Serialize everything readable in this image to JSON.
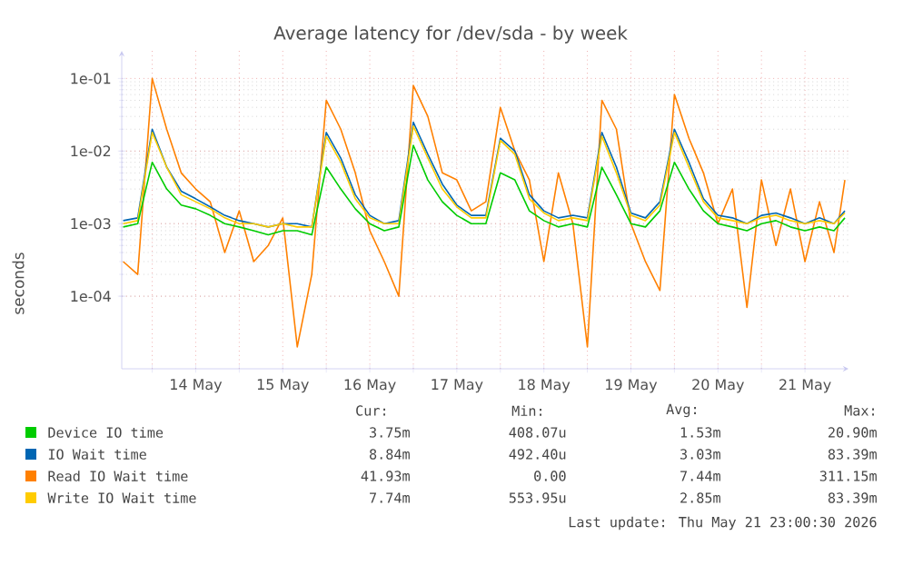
{
  "chart_data": {
    "type": "line",
    "title": "Average latency for /dev/sda - by week",
    "ylabel": "seconds",
    "log": "y",
    "grid": true,
    "legend": "bottom",
    "xlim": [
      "2026-05-13T15:36",
      "2026-05-22T00:00"
    ],
    "ylim": [
      1e-05,
      0.24
    ],
    "xticks": [
      {
        "value": "2026-05-14T00:00",
        "label": null
      },
      {
        "value": "2026-05-14T12:00",
        "label": "14 May"
      },
      {
        "value": "2026-05-15T00:00",
        "label": null
      },
      {
        "value": "2026-05-15T12:00",
        "label": "15 May"
      },
      {
        "value": "2026-05-16T00:00",
        "label": null
      },
      {
        "value": "2026-05-16T12:00",
        "label": "16 May"
      },
      {
        "value": "2026-05-17T00:00",
        "label": null
      },
      {
        "value": "2026-05-17T12:00",
        "label": "17 May"
      },
      {
        "value": "2026-05-18T00:00",
        "label": null
      },
      {
        "value": "2026-05-18T12:00",
        "label": "18 May"
      },
      {
        "value": "2026-05-19T00:00",
        "label": null
      },
      {
        "value": "2026-05-19T12:00",
        "label": "19 May"
      },
      {
        "value": "2026-05-20T00:00",
        "label": null
      },
      {
        "value": "2026-05-20T12:00",
        "label": "20 May"
      },
      {
        "value": "2026-05-21T00:00",
        "label": null
      },
      {
        "value": "2026-05-21T12:00",
        "label": "21 May"
      }
    ],
    "yticks": [
      {
        "value": 0.0001,
        "label": "1e-04"
      },
      {
        "value": 0.001,
        "label": "1e-03"
      },
      {
        "value": 0.01,
        "label": "1e-02"
      },
      {
        "value": 0.1,
        "label": "1e-01"
      }
    ],
    "x": [
      "2026-05-13T16:00",
      "2026-05-13T20:00",
      "2026-05-14T00:00",
      "2026-05-14T04:00",
      "2026-05-14T08:00",
      "2026-05-14T12:00",
      "2026-05-14T16:00",
      "2026-05-14T20:00",
      "2026-05-15T00:00",
      "2026-05-15T04:00",
      "2026-05-15T08:00",
      "2026-05-15T12:00",
      "2026-05-15T16:00",
      "2026-05-15T20:00",
      "2026-05-16T00:00",
      "2026-05-16T04:00",
      "2026-05-16T08:00",
      "2026-05-16T12:00",
      "2026-05-16T16:00",
      "2026-05-16T20:00",
      "2026-05-17T00:00",
      "2026-05-17T04:00",
      "2026-05-17T08:00",
      "2026-05-17T12:00",
      "2026-05-17T16:00",
      "2026-05-17T20:00",
      "2026-05-18T00:00",
      "2026-05-18T04:00",
      "2026-05-18T08:00",
      "2026-05-18T12:00",
      "2026-05-18T16:00",
      "2026-05-18T20:00",
      "2026-05-19T00:00",
      "2026-05-19T04:00",
      "2026-05-19T08:00",
      "2026-05-19T12:00",
      "2026-05-19T16:00",
      "2026-05-19T20:00",
      "2026-05-20T00:00",
      "2026-05-20T04:00",
      "2026-05-20T08:00",
      "2026-05-20T12:00",
      "2026-05-20T16:00",
      "2026-05-20T20:00",
      "2026-05-21T00:00",
      "2026-05-21T04:00",
      "2026-05-21T08:00",
      "2026-05-21T12:00",
      "2026-05-21T16:00",
      "2026-05-21T20:00",
      "2026-05-21T23:00"
    ],
    "series": [
      {
        "name": "Read IO Wait time",
        "color": "#ff8000",
        "values": [
          0.0003,
          0.0002,
          0.1,
          0.02,
          0.005,
          0.003,
          0.002,
          0.0004,
          0.0015,
          0.0003,
          0.0005,
          0.0012,
          2e-05,
          0.0002,
          0.05,
          0.02,
          0.005,
          0.0008,
          0.0003,
          0.0001,
          0.08,
          0.03,
          0.005,
          0.004,
          0.0015,
          0.002,
          0.04,
          0.01,
          0.004,
          0.0003,
          0.005,
          0.001,
          2e-05,
          0.05,
          0.02,
          0.001,
          0.0003,
          0.00012,
          0.06,
          0.015,
          0.005,
          0.001,
          0.003,
          7e-05,
          0.004,
          0.0005,
          0.003,
          0.0003,
          0.002,
          0.0004,
          0.004
        ]
      },
      {
        "name": "IO Wait time",
        "color": "#0066b3",
        "values": [
          0.0011,
          0.0012,
          0.02,
          0.006,
          0.0028,
          0.0022,
          0.0017,
          0.0013,
          0.0011,
          0.001,
          0.0009,
          0.001,
          0.001,
          0.0009,
          0.018,
          0.008,
          0.0025,
          0.0013,
          0.001,
          0.0011,
          0.025,
          0.009,
          0.0035,
          0.0018,
          0.0013,
          0.0013,
          0.015,
          0.01,
          0.0025,
          0.0015,
          0.0012,
          0.0013,
          0.0012,
          0.018,
          0.006,
          0.0014,
          0.0012,
          0.002,
          0.02,
          0.007,
          0.0022,
          0.0013,
          0.0012,
          0.001,
          0.0013,
          0.0014,
          0.0012,
          0.001,
          0.0012,
          0.001,
          0.0015
        ]
      },
      {
        "name": "Write IO Wait time",
        "color": "#ffcc00",
        "values": [
          0.001,
          0.0011,
          0.018,
          0.006,
          0.0025,
          0.002,
          0.0016,
          0.0012,
          0.001,
          0.001,
          0.0009,
          0.001,
          0.0009,
          0.0009,
          0.016,
          0.007,
          0.0022,
          0.0012,
          0.001,
          0.001,
          0.022,
          0.008,
          0.003,
          0.0017,
          0.0012,
          0.0012,
          0.014,
          0.009,
          0.0022,
          0.0014,
          0.0011,
          0.0012,
          0.0011,
          0.016,
          0.005,
          0.0013,
          0.0011,
          0.0018,
          0.018,
          0.006,
          0.002,
          0.0012,
          0.0011,
          0.001,
          0.0012,
          0.0013,
          0.0011,
          0.001,
          0.0011,
          0.001,
          0.0014
        ]
      },
      {
        "name": "Device IO time",
        "color": "#00cc00",
        "values": [
          0.0009,
          0.001,
          0.007,
          0.003,
          0.0018,
          0.0016,
          0.0013,
          0.001,
          0.0009,
          0.0008,
          0.0007,
          0.0008,
          0.0008,
          0.0007,
          0.006,
          0.003,
          0.0016,
          0.001,
          0.0008,
          0.0009,
          0.012,
          0.004,
          0.002,
          0.0013,
          0.001,
          0.001,
          0.005,
          0.004,
          0.0015,
          0.0011,
          0.0009,
          0.001,
          0.0009,
          0.006,
          0.0025,
          0.001,
          0.0009,
          0.0015,
          0.007,
          0.003,
          0.0015,
          0.001,
          0.0009,
          0.0008,
          0.001,
          0.0011,
          0.0009,
          0.0008,
          0.0009,
          0.0008,
          0.0012
        ]
      }
    ],
    "annotations": [
      "Cur:",
      "Min:",
      "Avg:",
      "Max:",
      "41.93m",
      "0.00",
      "7.44m",
      "311.15m",
      "8.84m",
      "492.40u",
      "3.03m",
      "83.39m",
      "7.74m",
      "553.95u",
      "2.85m",
      "83.39m",
      "3.75m",
      "408.07u",
      "1.53m",
      "20.90m",
      "Last update: Thu May 21 23:00:30 2026"
    ]
  }
}
